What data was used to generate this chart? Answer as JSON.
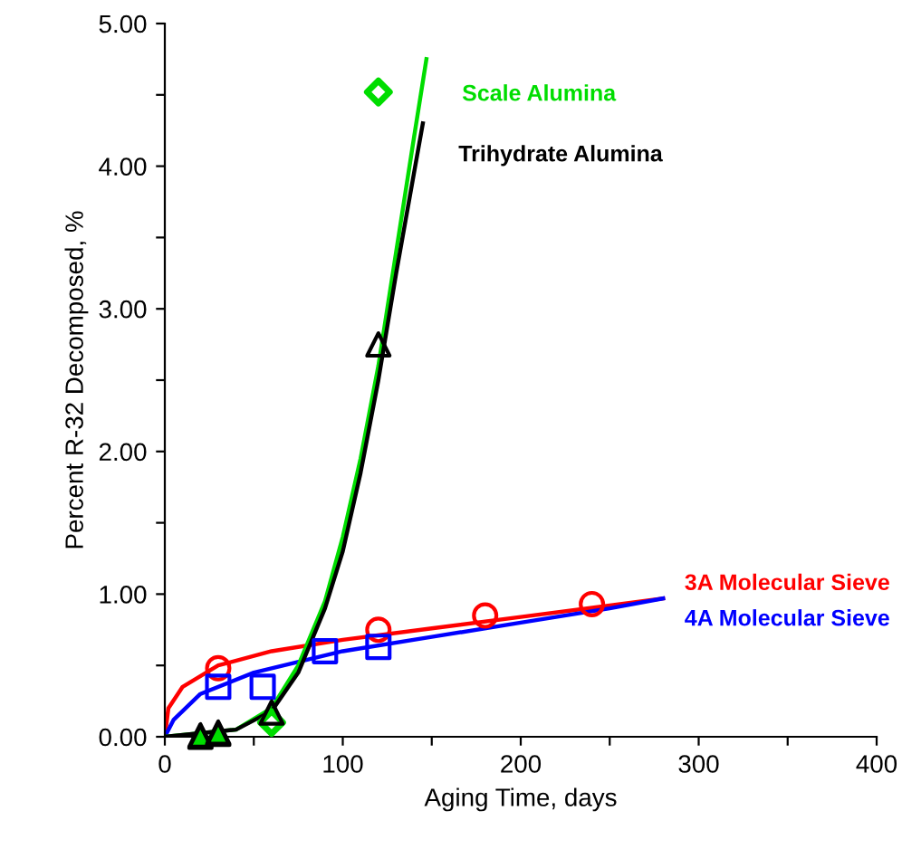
{
  "chart_data": {
    "type": "line",
    "xlabel": "Aging Time, days",
    "ylabel": "Percent R-32 Decomposed, %",
    "xlim": [
      0,
      400
    ],
    "ylim": [
      0,
      5
    ],
    "xticks": [
      0,
      {
        "value": 50,
        "label": null
      },
      100,
      {
        "value": 150,
        "label": null
      },
      200,
      {
        "value": 250,
        "label": null
      },
      300,
      {
        "value": 350,
        "label": null
      },
      400
    ],
    "yticks": [
      {
        "value": 0,
        "label": "0.00"
      },
      {
        "value": 0.5,
        "label": null
      },
      {
        "value": 1,
        "label": "1.00"
      },
      {
        "value": 1.5,
        "label": null
      },
      {
        "value": 2,
        "label": "2.00"
      },
      {
        "value": 2.5,
        "label": null
      },
      {
        "value": 3,
        "label": "3.00"
      },
      {
        "value": 3.5,
        "label": null
      },
      {
        "value": 4,
        "label": "4.00"
      },
      {
        "value": 4.5,
        "label": null
      },
      {
        "value": 5,
        "label": "5.00"
      }
    ],
    "grid": false,
    "legend": false,
    "series": [
      {
        "name": "3A Molecular Sieve",
        "color": "#ff0000",
        "marker": "none",
        "x": [
          0,
          2,
          10,
          30,
          60,
          100,
          150,
          200,
          250,
          280
        ],
        "values": [
          0,
          0.2,
          0.35,
          0.5,
          0.6,
          0.68,
          0.76,
          0.84,
          0.92,
          0.97
        ]
      },
      {
        "name": "4A Molecular Sieve",
        "color": "#0000ff",
        "marker": "none",
        "x": [
          0,
          5,
          20,
          50,
          100,
          150,
          200,
          250,
          280
        ],
        "values": [
          0,
          0.12,
          0.3,
          0.45,
          0.6,
          0.7,
          0.8,
          0.9,
          0.97
        ]
      },
      {
        "name": "Scale Alumina",
        "color": "#00dd00",
        "marker": "none",
        "x": [
          0,
          40,
          60,
          75,
          90,
          100,
          110,
          120,
          130,
          140,
          147
        ],
        "values": [
          0,
          0.05,
          0.2,
          0.5,
          0.95,
          1.4,
          1.95,
          2.6,
          3.4,
          4.2,
          4.75
        ]
      },
      {
        "name": "Trihydrate Alumina",
        "color": "#000000",
        "marker": "none",
        "x": [
          0,
          40,
          60,
          75,
          90,
          100,
          110,
          120,
          130,
          140,
          145
        ],
        "values": [
          0,
          0.05,
          0.18,
          0.45,
          0.9,
          1.3,
          1.85,
          2.5,
          3.25,
          3.95,
          4.3
        ]
      },
      {
        "type": "scatter",
        "color": "#ff0000",
        "marker": "circle",
        "x": [
          30,
          120,
          180,
          240
        ],
        "values": [
          0.48,
          0.75,
          0.85,
          0.93
        ]
      },
      {
        "type": "scatter",
        "color": "#0000ff",
        "marker": "square",
        "x": [
          30,
          55,
          90,
          120
        ],
        "values": [
          0.35,
          0.35,
          0.6,
          0.63
        ]
      },
      {
        "type": "scatter",
        "color": "#00dd00",
        "marker": "triangle",
        "x": [
          20,
          30
        ],
        "values": [
          0,
          0.02
        ]
      },
      {
        "type": "scatter",
        "color": "#00dd00",
        "marker": "diamond",
        "x": [
          60,
          120
        ],
        "values": [
          0.1,
          4.52
        ]
      },
      {
        "type": "scatter",
        "color": "#000000",
        "marker": "triangle",
        "x": [
          20,
          30,
          60,
          120
        ],
        "values": [
          0.01,
          0.03,
          0.17,
          2.75
        ]
      }
    ]
  }
}
